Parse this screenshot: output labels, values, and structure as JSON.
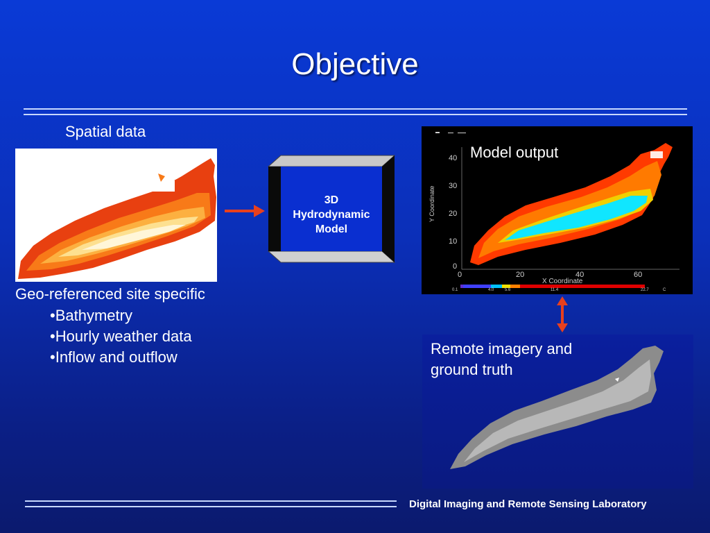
{
  "slide": {
    "title": "Objective",
    "footer": "Digital Imaging and Remote Sensing Laboratory"
  },
  "spatial": {
    "heading": "Spatial data",
    "description": "Geo-referenced site specific",
    "bullets": [
      "•Bathymetry",
      "•Hourly weather data",
      "•Inflow and outflow"
    ]
  },
  "model": {
    "lines": [
      "3D",
      "Hydrodynamic",
      "Model"
    ]
  },
  "output": {
    "label": "Model output",
    "y_axis_label": "Y Coordinate",
    "x_axis_label": "X Coordinate",
    "y_ticks": [
      "40",
      "30",
      "20",
      "10",
      "0"
    ],
    "x_ticks": [
      "0",
      "20",
      "40",
      "60"
    ],
    "colorbar_ticks": [
      "0.1",
      "4.0",
      "5.6",
      "11.4",
      "22.7",
      "C"
    ]
  },
  "remote": {
    "label_line1": "Remote imagery and",
    "label_line2": "ground truth"
  },
  "colors": {
    "background_top": "#0a3ad6",
    "background_bottom": "#0b1a6e",
    "arrow": "#e8401e",
    "model_box": "#0a2fd0",
    "rule": "#c8d8ff"
  }
}
